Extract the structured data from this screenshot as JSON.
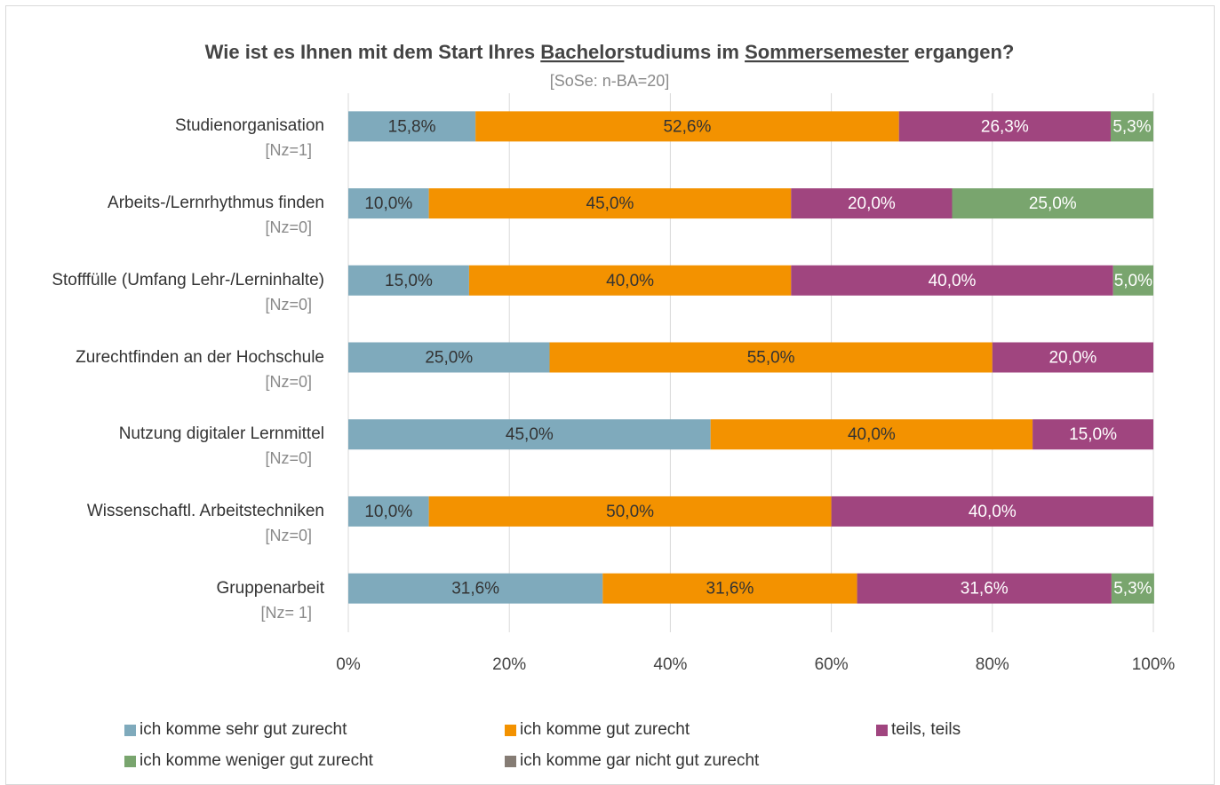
{
  "chart_data": {
    "type": "stacked_bar_horizontal",
    "title_parts": [
      {
        "text": "Wie ist es Ihnen mit dem Start Ihres ",
        "underline": false
      },
      {
        "text": "Bachelor",
        "underline": true
      },
      {
        "text": "studiums im ",
        "underline": false
      },
      {
        "text": "Sommersemester",
        "underline": true
      },
      {
        "text": " ergangen?",
        "underline": false
      }
    ],
    "subtitle": "[SoSe: n-BA=20]",
    "categories": [
      "Studienorganisation",
      "Arbeits-/Lernrhythmus finden",
      "Stofffülle (Umfang Lehr-/Lerninhalte)",
      "Zurechtfinden an der Hochschule",
      "Nutzung digitaler Lernmittel",
      "Wissenschaftl. Arbeitstechniken",
      "Gruppenarbeit"
    ],
    "category_notes": [
      "[Nz=1]",
      "[Nz=0]",
      "[Nz=0]",
      "[Nz=0]",
      "[Nz=0]",
      "[Nz=0]",
      "[Nz= 1]"
    ],
    "series": [
      {
        "name": "ich komme sehr gut zurecht",
        "color": "#7faabc",
        "label_color": "#333333",
        "values": [
          15.8,
          10,
          15,
          25,
          45,
          10,
          31.6
        ],
        "value_labels": [
          "15,8%",
          "10,0%",
          "15,0%",
          "25,0%",
          "45,0%",
          "10,0%",
          "31,6%"
        ]
      },
      {
        "name": "ich komme gut zurecht",
        "color": "#f39200",
        "label_color": "#333333",
        "values": [
          52.6,
          45,
          40,
          55,
          40,
          50,
          31.6
        ],
        "value_labels": [
          "52,6%",
          "45,0%",
          "40,0%",
          "55,0%",
          "40,0%",
          "50,0%",
          "31,6%"
        ]
      },
      {
        "name": "teils, teils",
        "color": "#a0457f",
        "label_color": "#ffffff",
        "values": [
          26.3,
          20,
          40,
          20,
          15,
          40,
          31.6
        ],
        "value_labels": [
          "26,3%",
          "20,0%",
          "40,0%",
          "20,0%",
          "15,0%",
          "40,0%",
          "31,6%"
        ]
      },
      {
        "name": "ich komme weniger gut zurecht",
        "color": "#79a56e",
        "label_color": "#ffffff",
        "values": [
          5.3,
          25,
          5,
          0,
          0,
          0,
          5.3
        ],
        "value_labels": [
          "5,3%",
          "25,0%",
          "5,0%",
          null,
          null,
          null,
          "5,3%"
        ]
      },
      {
        "name": "ich komme gar nicht gut zurecht",
        "color": "#857c74",
        "label_color": "#ffffff",
        "values": [
          0,
          0,
          0,
          0,
          0,
          0,
          0
        ],
        "value_labels": [
          null,
          null,
          null,
          null,
          null,
          null,
          null
        ]
      }
    ],
    "xlim": [
      0,
      100
    ],
    "xticks": [
      {
        "value": 0,
        "label": "0%"
      },
      {
        "value": 20,
        "label": "20%"
      },
      {
        "value": 40,
        "label": "40%"
      },
      {
        "value": 60,
        "label": "60%"
      },
      {
        "value": 80,
        "label": "80%"
      },
      {
        "value": 100,
        "label": "100%"
      }
    ],
    "grid": true,
    "legend": "bottom"
  }
}
